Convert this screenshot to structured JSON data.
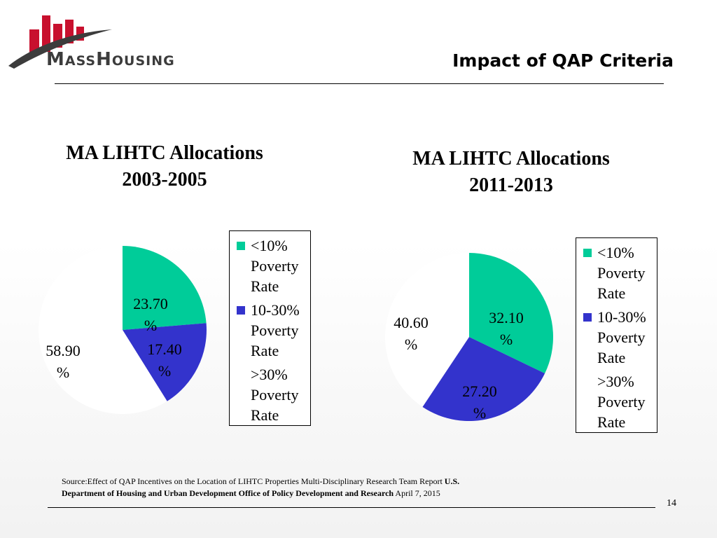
{
  "header": {
    "logo_text_big1": "M",
    "logo_text_small1": "ASS",
    "logo_text_big2": "H",
    "logo_text_small2": "OUSING",
    "title": "Impact of QAP Criteria"
  },
  "colors": {
    "green": "#00cc99",
    "blue": "#3333cc",
    "white": "#ffffff",
    "logo_red": "#c8102e",
    "logo_gray": "#3c3c3c"
  },
  "legend_labels": [
    "<10% Poverty Rate",
    "10-30% Poverty Rate",
    ">30% Poverty Rate"
  ],
  "chart_data": [
    {
      "type": "pie",
      "title": "MA LIHTC Allocations 2003-2005",
      "title_line1": "MA LIHTC Allocations",
      "title_line2": "2003-2005",
      "categories": [
        "<10% Poverty Rate",
        "10-30% Poverty Rate",
        ">30% Poverty Rate"
      ],
      "values": [
        23.7,
        17.4,
        58.9
      ],
      "labels": [
        "23.70 %",
        "17.40 %",
        "58.90 %"
      ],
      "legend": "right"
    },
    {
      "type": "pie",
      "title": "MA LIHTC Allocations 2011-2013",
      "title_line1": "MA LIHTC Allocations",
      "title_line2": "2011-2013",
      "categories": [
        "<10% Poverty Rate",
        "10-30% Poverty Rate",
        ">30% Poverty Rate"
      ],
      "values": [
        32.1,
        27.2,
        40.6
      ],
      "labels": [
        "32.10 %",
        "27.20 %",
        "40.60 %"
      ],
      "legend": "right"
    }
  ],
  "footer": {
    "source_prefix": "Source:Effect of QAP Incentives on the Location of LIHTC Properties Multi-Disciplinary Research Team Report ",
    "source_bold": "U.S. Department of Housing and Urban Development Office of Policy Development and Research",
    "source_suffix": " April 7, 2015",
    "page_number": "14"
  }
}
